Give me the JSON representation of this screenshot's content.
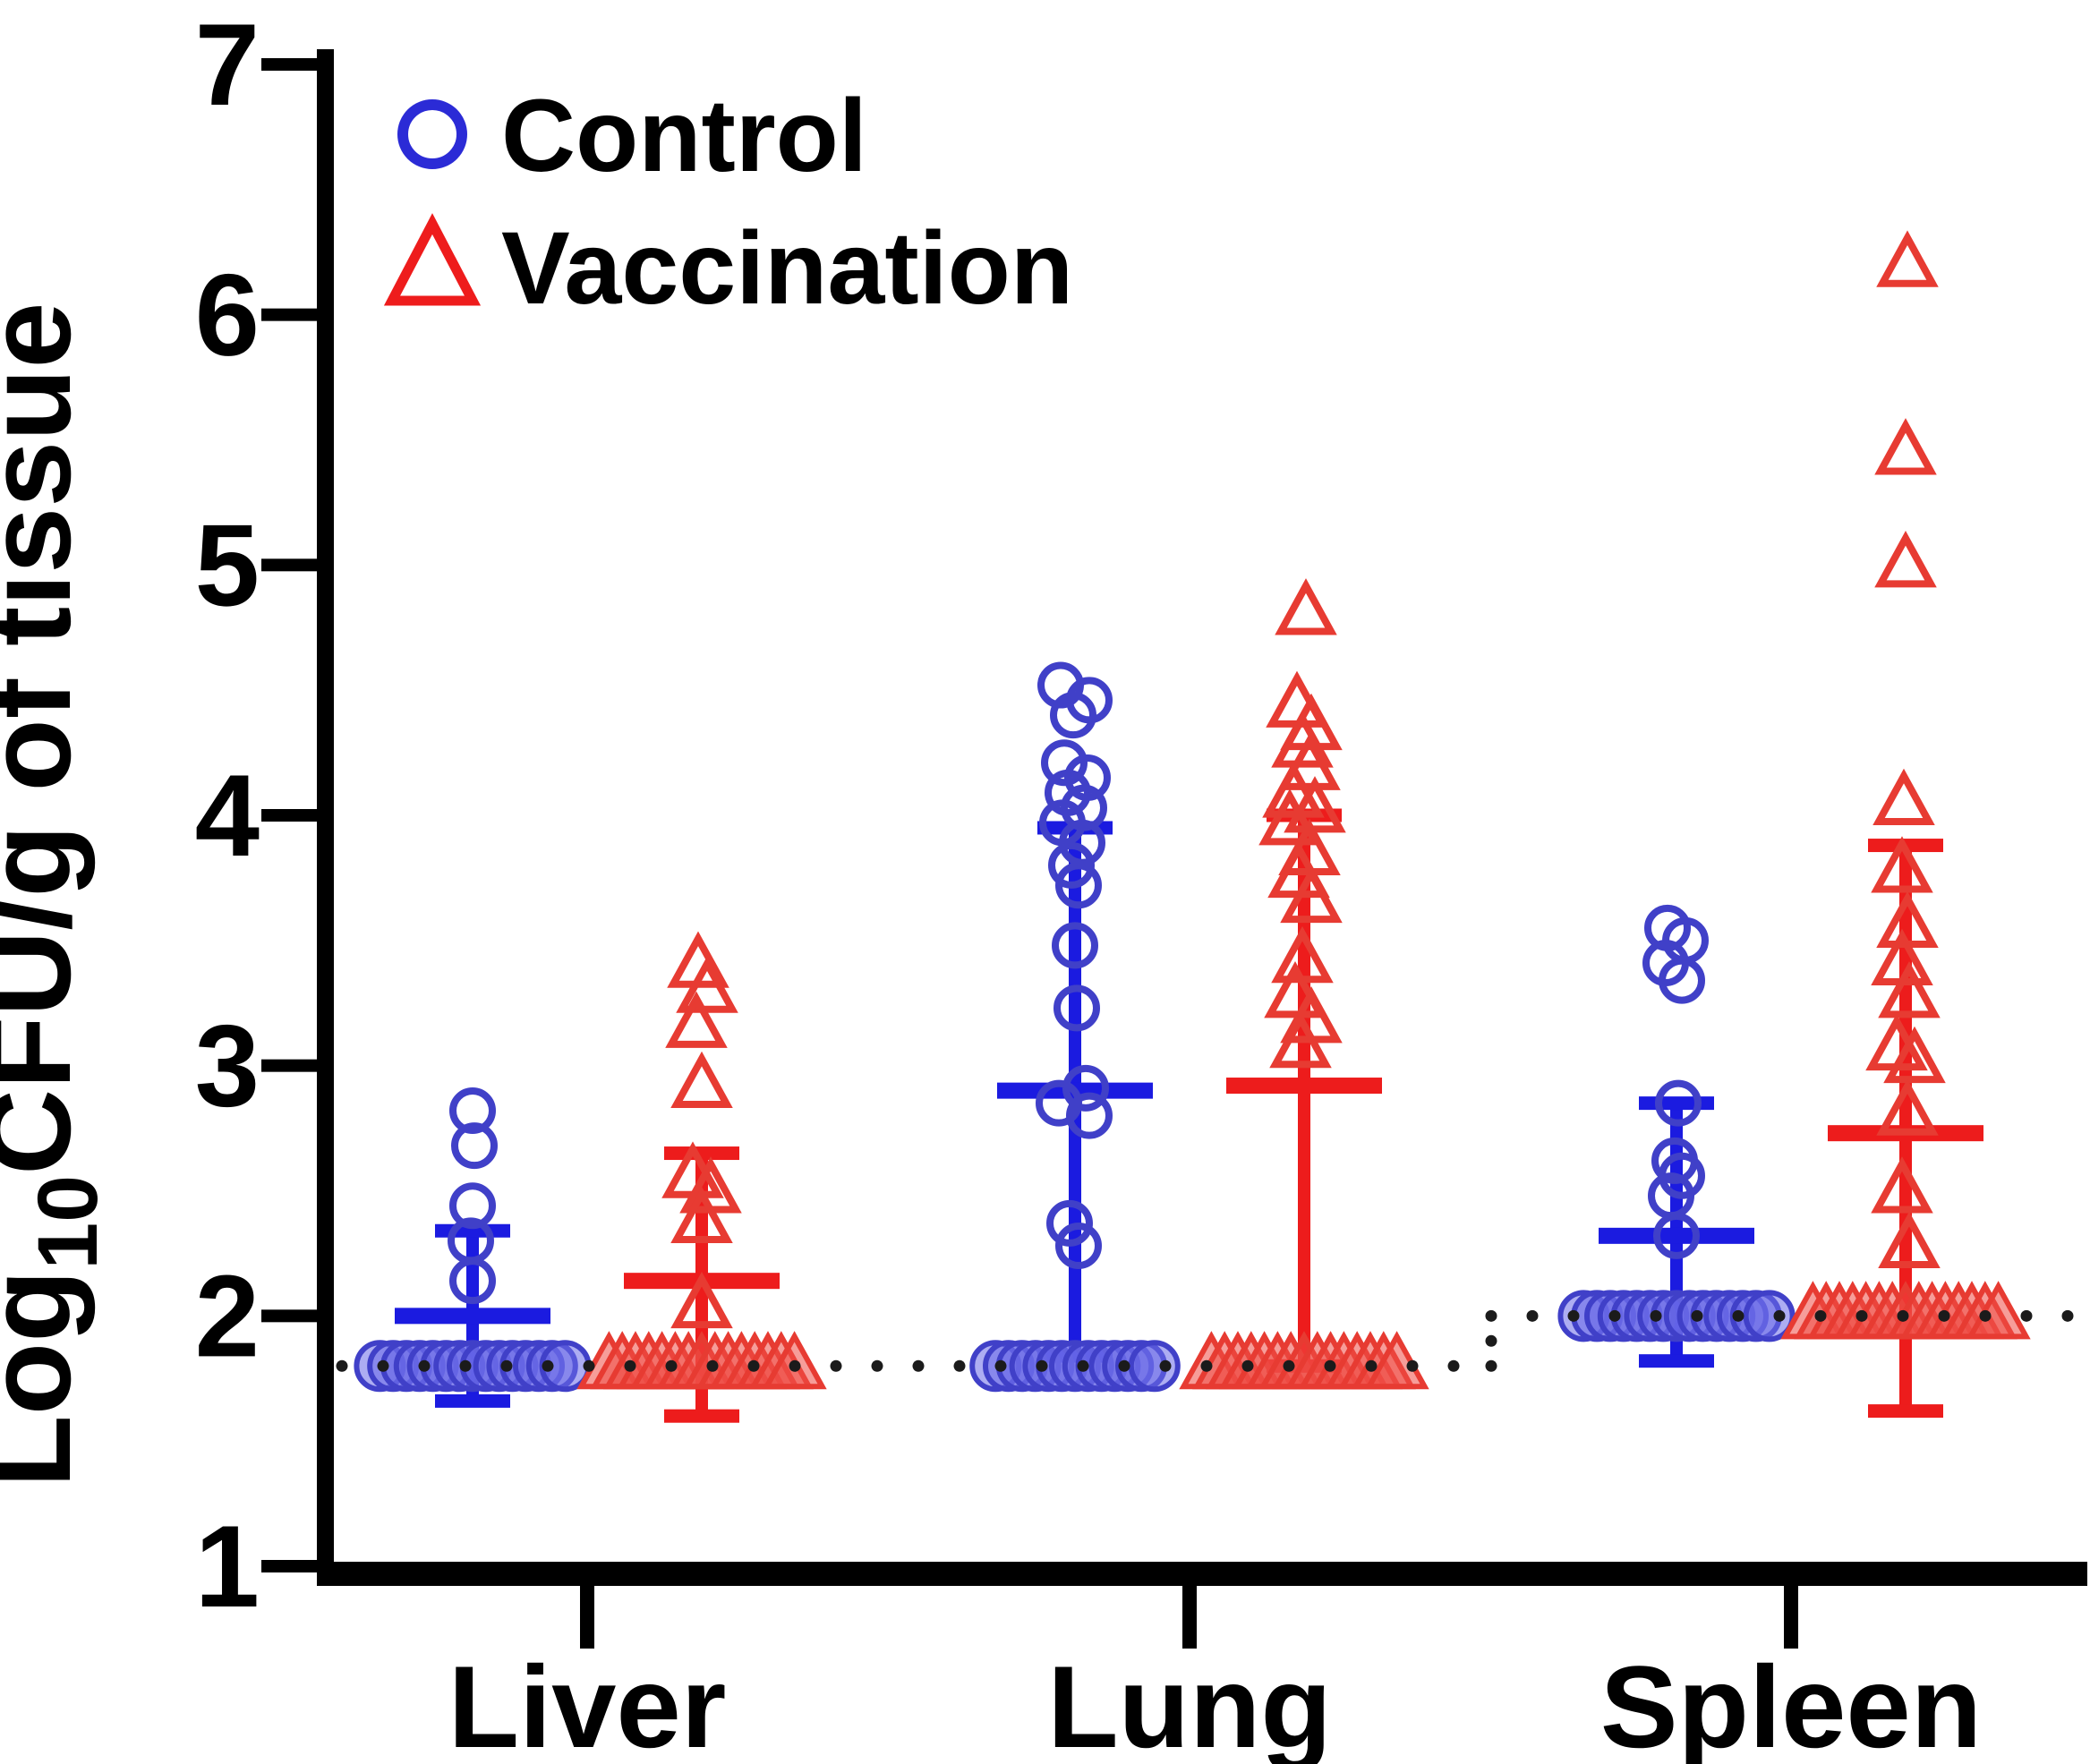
{
  "chart_data": {
    "type": "scatter",
    "title": "",
    "ylabel": {
      "pre": "Log",
      "sub": "10",
      "post": "CFU/g of tissue"
    },
    "xlabel": "",
    "ylim": [
      1,
      7
    ],
    "yticks": [
      1,
      2,
      3,
      4,
      5,
      6,
      7
    ],
    "ytick_labels": [
      "1",
      "2",
      "3",
      "4",
      "5",
      "6",
      "7"
    ],
    "categories": [
      "Liver",
      "Lung",
      "Spleen"
    ],
    "grid": false,
    "legend_position": "top-left-inside",
    "legend": [
      {
        "label": "Control",
        "marker": "circle",
        "color": "#2B2BD6"
      },
      {
        "label": "Vaccination",
        "marker": "triangle",
        "color": "#EE1C1C"
      }
    ],
    "detection_limit": {
      "liver_lung": 1.8,
      "spleen": 2.0
    },
    "error_bar_style": "mean_with_sd",
    "colors": {
      "axis": "#000000",
      "detection_line": "#1B1B1B",
      "background": "#FFFFFF",
      "control_marker": "#4040C8",
      "control_bar": "#1B1BE0",
      "control_cluster_fill": "#6A6AE8",
      "vaccination_marker": "#E73B32",
      "vaccination_bar": "#ED1C1C",
      "vaccination_cluster_fill": "#EF4C45"
    },
    "series": [
      {
        "name": "Control",
        "marker": "circle",
        "marker_color": "#4040C8",
        "bar_color": "#1B1BE0",
        "cluster_fill": "#6A6AE8",
        "groups": [
          {
            "category": "Liver",
            "points": [
              [
                2.82,
                0
              ],
              [
                2.68,
                2
              ],
              [
                2.44,
                0
              ],
              [
                2.3,
                -2
              ],
              [
                2.14,
                0
              ]
            ],
            "cluster": {
              "value": 1.8,
              "count": 15
            },
            "mean": 2.0,
            "sd_upper": 2.34,
            "sd_lower": 1.66
          },
          {
            "category": "Lung",
            "points": [
              [
                4.52,
                -16
              ],
              [
                4.46,
                16
              ],
              [
                4.4,
                -2
              ],
              [
                4.21,
                -12
              ],
              [
                4.15,
                14
              ],
              [
                4.09,
                -8
              ],
              [
                4.03,
                10
              ],
              [
                3.97,
                -14
              ],
              [
                3.89,
                8
              ],
              [
                3.8,
                -4
              ],
              [
                3.72,
                4
              ],
              [
                3.48,
                0
              ],
              [
                3.23,
                2
              ],
              [
                2.91,
                12
              ],
              [
                2.85,
                -18
              ],
              [
                2.8,
                16
              ],
              [
                2.37,
                -6
              ],
              [
                2.28,
                4
              ]
            ],
            "cluster": {
              "value": 1.8,
              "count": 13
            },
            "mean": 2.9,
            "sd_upper": 3.95,
            "sd_lower": 1.84
          },
          {
            "category": "Spleen",
            "points": [
              [
                3.55,
                -10
              ],
              [
                3.5,
                10
              ],
              [
                3.41,
                -12
              ],
              [
                3.34,
                6
              ],
              [
                2.85,
                2
              ],
              [
                2.62,
                -2
              ],
              [
                2.56,
                6
              ],
              [
                2.48,
                -6
              ],
              [
                2.32,
                0
              ]
            ],
            "cluster": {
              "value": 2.0,
              "count": 15
            },
            "mean": 2.32,
            "sd_upper": 2.85,
            "sd_lower": 1.82
          }
        ]
      },
      {
        "name": "Vaccination",
        "marker": "triangle",
        "marker_color": "#E73B32",
        "bar_color": "#ED1C1C",
        "cluster_fill": "#EF4C45",
        "groups": [
          {
            "category": "Liver",
            "points": [
              [
                3.4,
                -4
              ],
              [
                3.3,
                6
              ],
              [
                3.16,
                -6
              ],
              [
                2.92,
                0
              ],
              [
                2.56,
                -10
              ],
              [
                2.5,
                10
              ],
              [
                2.38,
                0
              ],
              [
                2.04,
                0
              ]
            ],
            "cluster": {
              "value": 1.8,
              "count": 15
            },
            "mean": 2.14,
            "sd_upper": 2.65,
            "sd_lower": 1.6
          },
          {
            "category": "Lung",
            "points": [
              [
                4.81,
                2
              ],
              [
                4.44,
                -8
              ],
              [
                4.35,
                8
              ],
              [
                4.28,
                -2
              ],
              [
                4.19,
                6
              ],
              [
                4.08,
                -12
              ],
              [
                4.02,
                12
              ],
              [
                3.97,
                -16
              ],
              [
                3.85,
                6
              ],
              [
                3.76,
                -6
              ],
              [
                3.66,
                8
              ],
              [
                3.42,
                -2
              ],
              [
                3.28,
                -10
              ],
              [
                3.18,
                8
              ],
              [
                3.08,
                -4
              ]
            ],
            "cluster": {
              "value": 1.8,
              "count": 15
            },
            "mean": 2.92,
            "sd_upper": 4.0,
            "sd_lower": 1.8
          },
          {
            "category": "Spleen",
            "points": [
              [
                6.2,
                2
              ],
              [
                5.45,
                0
              ],
              [
                5.0,
                0
              ],
              [
                4.05,
                -2
              ],
              [
                3.78,
                -4
              ],
              [
                3.56,
                2
              ],
              [
                3.41,
                -4
              ],
              [
                3.28,
                4
              ],
              [
                3.07,
                -10
              ],
              [
                3.02,
                10
              ],
              [
                2.81,
                2
              ],
              [
                2.5,
                -4
              ],
              [
                2.28,
                4
              ]
            ],
            "cluster": {
              "value": 2.0,
              "count": 15
            },
            "mean": 2.73,
            "sd_upper": 3.88,
            "sd_lower": 1.62
          }
        ]
      }
    ]
  }
}
